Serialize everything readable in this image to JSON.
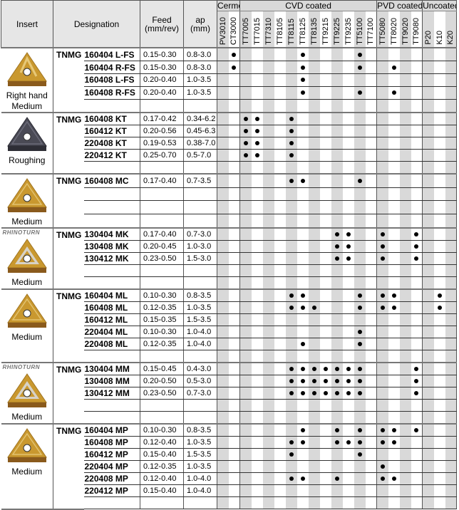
{
  "header": {
    "insert": "Insert",
    "designation": "Designation",
    "feed": "Feed",
    "feed_unit": "(mm/rev)",
    "ap": "ap",
    "ap_unit": "(mm)"
  },
  "grade_groups": [
    {
      "label": "Cermet",
      "grades": [
        "PV3010",
        "CT3000"
      ]
    },
    {
      "label": "CVD coated",
      "grades": [
        "TT7005",
        "TT7015",
        "TT7310",
        "TT8105",
        "TT8115",
        "TT8125",
        "TT8135",
        "TT9215",
        "TT9225",
        "TT9235",
        "TT5100",
        "TT7100"
      ]
    },
    {
      "label": "PVD coated",
      "grades": [
        "TT5080",
        "TT8020",
        "TT9020",
        "TT9080"
      ]
    },
    {
      "label": "Uncoated",
      "grades": [
        "P20",
        "K10",
        "K20"
      ]
    }
  ],
  "colors": {
    "stripe": "#d9d9d9",
    "insert_gold": "#c9982f",
    "insert_dark": "#4a4a55"
  },
  "groups": [
    {
      "labels": [
        "Right hand",
        "Medium"
      ],
      "logo": "",
      "insert_icon": "triangle-chipbreaker-gold",
      "insert_color": "#c9982f",
      "prefix": "TNMG",
      "rows": [
        {
          "code": "160404 L-FS",
          "feed": "0.15-0.30",
          "ap": "0.8-3.0",
          "grades": [
            "CT3000",
            "TT8125",
            "TT5100"
          ]
        },
        {
          "code": "160404 R-FS",
          "feed": "0.15-0.30",
          "ap": "0.8-3.0",
          "grades": [
            "CT3000",
            "TT8125",
            "TT5100",
            "TT8020"
          ]
        },
        {
          "code": "160408 L-FS",
          "feed": "0.20-0.40",
          "ap": "1.0-3.5",
          "grades": [
            "TT8125"
          ]
        },
        {
          "code": "160408 R-FS",
          "feed": "0.20-0.40",
          "ap": "1.0-3.5",
          "grades": [
            "TT8125",
            "TT5100",
            "TT8020"
          ]
        }
      ]
    },
    {
      "labels": [
        "Roughing"
      ],
      "logo": "",
      "insert_icon": "triangle-dark",
      "insert_color": "#4a4a55",
      "prefix": "TNMG",
      "rows": [
        {
          "code": "160408 KT",
          "feed": "0.17-0.42",
          "ap": "0.34-6.2",
          "grades": [
            "TT7005",
            "TT7015",
            "TT8115"
          ]
        },
        {
          "code": "160412 KT",
          "feed": "0.20-0.56",
          "ap": "0.45-6.3",
          "grades": [
            "TT7005",
            "TT7015",
            "TT8115"
          ]
        },
        {
          "code": "220408 KT",
          "feed": "0.19-0.53",
          "ap": "0.38-7.0",
          "grades": [
            "TT7005",
            "TT7015",
            "TT8115"
          ]
        },
        {
          "code": "220412 KT",
          "feed": "0.25-0.70",
          "ap": "0.5-7.0",
          "grades": [
            "TT7005",
            "TT7015",
            "TT8115"
          ]
        }
      ]
    },
    {
      "labels": [
        "Medium"
      ],
      "logo": "",
      "insert_icon": "triangle-gold",
      "insert_color": "#c9982f",
      "prefix": "TNMG",
      "rows": [
        {
          "code": "160408 MC",
          "feed": "0.17-0.40",
          "ap": "0.7-3.5",
          "grades": [
            "TT8115",
            "TT8125",
            "TT5100"
          ]
        }
      ]
    },
    {
      "labels": [
        "Medium"
      ],
      "logo": "RHINOTURN",
      "insert_icon": "triangle-gold-silver",
      "insert_color": "#c9982f",
      "prefix": "TNMG",
      "rows": [
        {
          "code": "130404 MK",
          "feed": "0.17-0.40",
          "ap": "0.7-3.0",
          "grades": [
            "TT9225",
            "TT9235",
            "TT5080",
            "TT9080"
          ]
        },
        {
          "code": "130408 MK",
          "feed": "0.20-0.45",
          "ap": "1.0-3.0",
          "grades": [
            "TT9225",
            "TT9235",
            "TT5080",
            "TT9080"
          ]
        },
        {
          "code": "130412 MK",
          "feed": "0.23-0.50",
          "ap": "1.5-3.0",
          "grades": [
            "TT9225",
            "TT9235",
            "TT5080",
            "TT9080"
          ]
        }
      ]
    },
    {
      "labels": [
        "Medium"
      ],
      "logo": "",
      "insert_icon": "triangle-gold",
      "insert_color": "#c9982f",
      "prefix": "TNMG",
      "rows": [
        {
          "code": "160404 ML",
          "feed": "0.10-0.30",
          "ap": "0.8-3.5",
          "grades": [
            "TT8115",
            "TT8125",
            "TT5100",
            "TT5080",
            "TT8020",
            "K10"
          ]
        },
        {
          "code": "160408 ML",
          "feed": "0.12-0.35",
          "ap": "1.0-3.5",
          "grades": [
            "TT8115",
            "TT8125",
            "TT8135",
            "TT5100",
            "TT5080",
            "TT8020",
            "K10"
          ]
        },
        {
          "code": "160412 ML",
          "feed": "0.15-0.35",
          "ap": "1.5-3.5",
          "grades": []
        },
        {
          "code": "220404 ML",
          "feed": "0.10-0.30",
          "ap": "1.0-4.0",
          "grades": [
            "TT5100"
          ]
        },
        {
          "code": "220408 ML",
          "feed": "0.12-0.35",
          "ap": "1.0-4.0",
          "grades": [
            "TT8125",
            "TT5100"
          ]
        }
      ]
    },
    {
      "labels": [
        "Medium"
      ],
      "logo": "RHINOTURN",
      "insert_icon": "triangle-gold-silver",
      "insert_color": "#c9982f",
      "prefix": "TNMG",
      "rows": [
        {
          "code": "130404 MM",
          "feed": "0.15-0.45",
          "ap": "0.4-3.0",
          "grades": [
            "TT8115",
            "TT8125",
            "TT8135",
            "TT9215",
            "TT9225",
            "TT9235",
            "TT5100",
            "TT9080"
          ]
        },
        {
          "code": "130408 MM",
          "feed": "0.20-0.50",
          "ap": "0.5-3.0",
          "grades": [
            "TT8115",
            "TT8125",
            "TT8135",
            "TT9215",
            "TT9225",
            "TT9235",
            "TT5100",
            "TT9080"
          ]
        },
        {
          "code": "130412 MM",
          "feed": "0.23-0.50",
          "ap": "0.7-3.0",
          "grades": [
            "TT8115",
            "TT8125",
            "TT8135",
            "TT9215",
            "TT9225",
            "TT9235",
            "TT5100",
            "TT9080"
          ]
        }
      ]
    },
    {
      "labels": [
        "Medium"
      ],
      "logo": "",
      "insert_icon": "triangle-gold",
      "insert_color": "#c9982f",
      "prefix": "TNMG",
      "rows": [
        {
          "code": "160404 MP",
          "feed": "0.10-0.30",
          "ap": "0.8-3.5",
          "grades": [
            "TT8125",
            "TT9225",
            "TT5100",
            "TT5080",
            "TT8020",
            "TT9080"
          ]
        },
        {
          "code": "160408 MP",
          "feed": "0.12-0.40",
          "ap": "1.0-3.5",
          "grades": [
            "TT8115",
            "TT8125",
            "TT9225",
            "TT9235",
            "TT5100",
            "TT5080",
            "TT8020"
          ]
        },
        {
          "code": "160412 MP",
          "feed": "0.15-0.40",
          "ap": "1.5-3.5",
          "grades": [
            "TT8115",
            "TT5100"
          ]
        },
        {
          "code": "220404 MP",
          "feed": "0.12-0.35",
          "ap": "1.0-3.5",
          "grades": [
            "TT5080"
          ]
        },
        {
          "code": "220408 MP",
          "feed": "0.12-0.40",
          "ap": "1.0-4.0",
          "grades": [
            "TT8115",
            "TT8125",
            "TT9225",
            "TT5080",
            "TT8020"
          ]
        },
        {
          "code": "220412 MP",
          "feed": "0.15-0.40",
          "ap": "1.0-4.0",
          "grades": []
        }
      ]
    }
  ]
}
